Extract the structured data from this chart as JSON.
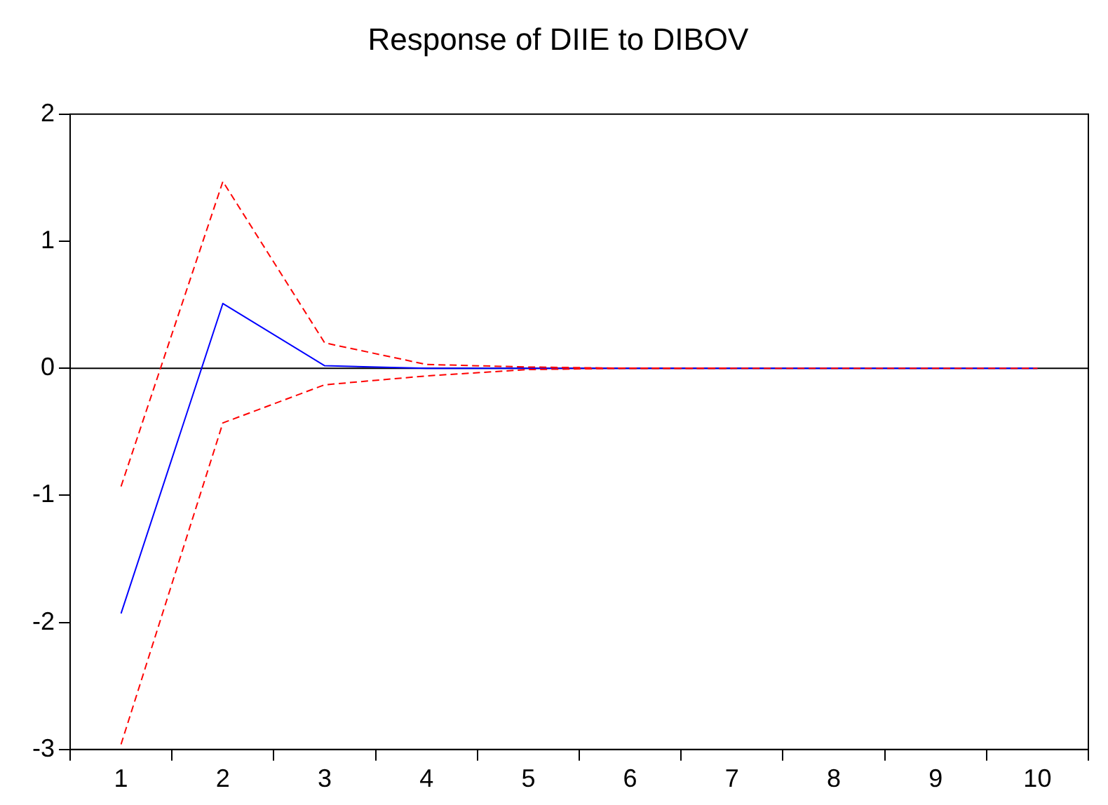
{
  "chart_data": {
    "type": "line",
    "title": "Response of DIIE to DIBOV",
    "categories": [
      "1",
      "2",
      "3",
      "4",
      "5",
      "6",
      "7",
      "8",
      "9",
      "10"
    ],
    "series": [
      {
        "color": "#0000ff",
        "line_style": "solid",
        "values": [
          -1.93,
          0.51,
          0.02,
          0.0,
          0.0,
          0.0,
          0.0,
          0.0,
          0.0,
          0.0
        ]
      },
      {
        "color": "#ff0000",
        "line_style": "dashed",
        "values": [
          -0.93,
          1.47,
          0.2,
          0.03,
          0.01,
          0.0,
          0.0,
          0.0,
          0.0,
          0.0
        ]
      },
      {
        "color": "#ff0000",
        "line_style": "dashed",
        "values": [
          -2.96,
          -0.43,
          -0.13,
          -0.06,
          -0.01,
          0.0,
          0.0,
          null,
          null,
          null
        ]
      }
    ],
    "ylim": [
      -3,
      2
    ],
    "yticks": [
      -3,
      -2,
      -1,
      0,
      1,
      2
    ],
    "grid": false,
    "legend": false,
    "marker": "none",
    "ref_lines": [
      {
        "axis": "y",
        "value": 0,
        "color": "#000000"
      }
    ]
  }
}
